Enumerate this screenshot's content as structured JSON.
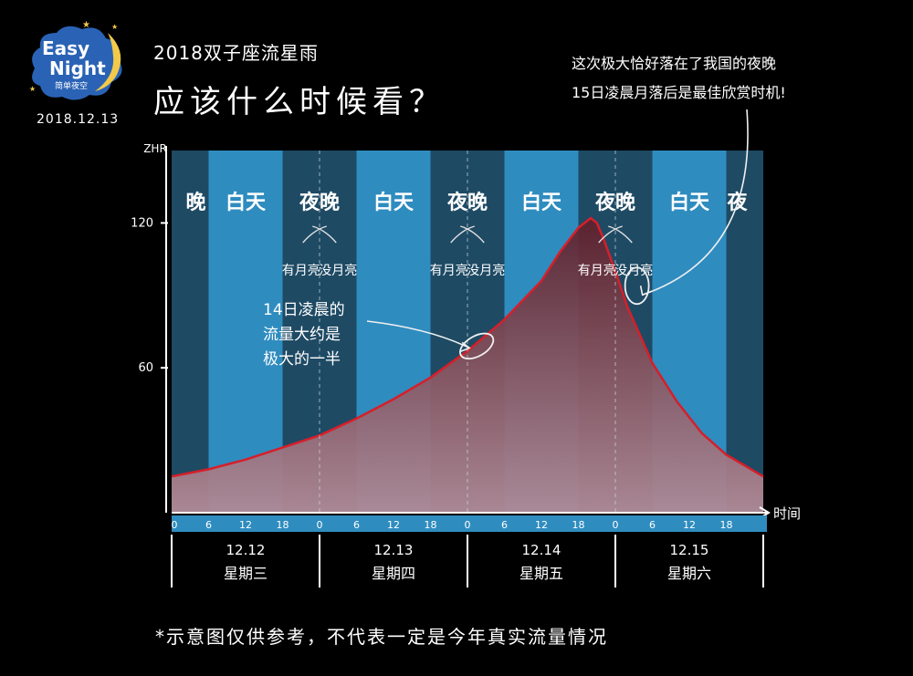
{
  "header": {
    "logo_line1": "Easy",
    "logo_line2": "Night",
    "logo_sub": "简单夜空",
    "date": "2018.12.13",
    "subtitle": "2018双子座流星雨",
    "title": "应该什么时候看？"
  },
  "annotations": {
    "right_note_line1": "这次极大恰好落在了我国的夜晚",
    "right_note_line2": "15日凌晨月落后是最佳欣赏时机!",
    "mid_note_line1": "14日凌晨的",
    "mid_note_line2": "流量大约是",
    "mid_note_line3": "极大的一半"
  },
  "footnote": "*示意图仅供参考，不代表一定是今年真实流量情况",
  "colors": {
    "day_band": "#2f8cbf",
    "night_band": "#1e4a64",
    "curve": "#d61f2a",
    "fill_top": "#5e1f2a",
    "fill_bottom": "#b08a96"
  },
  "chart_data": {
    "type": "area",
    "ylabel": "ZHR",
    "xlabel": "时间",
    "xlim": [
      0,
      96
    ],
    "ylim": [
      0,
      150
    ],
    "yticks": [
      60,
      120
    ],
    "x_tick_labels": [
      "0",
      "6",
      "12",
      "18",
      "0",
      "6",
      "12",
      "18",
      "0",
      "6",
      "12",
      "18",
      "0",
      "6",
      "12",
      "18"
    ],
    "days": [
      {
        "date": "12.12",
        "weekday": "星期三"
      },
      {
        "date": "12.13",
        "weekday": "星期四"
      },
      {
        "date": "12.14",
        "weekday": "星期五"
      },
      {
        "date": "12.15",
        "weekday": "星期六"
      }
    ],
    "band_labels": [
      {
        "text": "晚",
        "type": "night",
        "start": 0,
        "end": 6
      },
      {
        "text": "白天",
        "type": "day",
        "start": 6,
        "end": 18
      },
      {
        "text": "夜晚",
        "type": "night",
        "start": 18,
        "end": 30
      },
      {
        "text": "白天",
        "type": "day",
        "start": 30,
        "end": 42
      },
      {
        "text": "夜晚",
        "type": "night",
        "start": 42,
        "end": 54
      },
      {
        "text": "白天",
        "type": "day",
        "start": 54,
        "end": 66
      },
      {
        "text": "夜晚",
        "type": "night",
        "start": 66,
        "end": 78
      },
      {
        "text": "白天",
        "type": "day",
        "start": 78,
        "end": 90
      },
      {
        "text": "夜",
        "type": "night",
        "start": 90,
        "end": 96
      }
    ],
    "moon_labels": [
      {
        "text": "有月亮",
        "x": 21
      },
      {
        "text": "没月亮",
        "x": 27
      },
      {
        "text": "有月亮",
        "x": 45
      },
      {
        "text": "没月亮",
        "x": 51
      },
      {
        "text": "有月亮",
        "x": 69
      },
      {
        "text": "没月亮",
        "x": 75
      }
    ],
    "moonset_hours": [
      24,
      48,
      72
    ],
    "series": [
      {
        "x": [
          0,
          6,
          12,
          18,
          24,
          30,
          36,
          42,
          48,
          54,
          60,
          63,
          66,
          68,
          69,
          70,
          72,
          74,
          78,
          82,
          86,
          90,
          96
        ],
        "values": [
          15,
          18,
          22,
          27,
          32,
          39,
          47,
          56,
          67,
          80,
          96,
          108,
          118,
          122,
          120,
          114,
          100,
          85,
          62,
          46,
          33,
          24,
          15
        ]
      }
    ]
  }
}
